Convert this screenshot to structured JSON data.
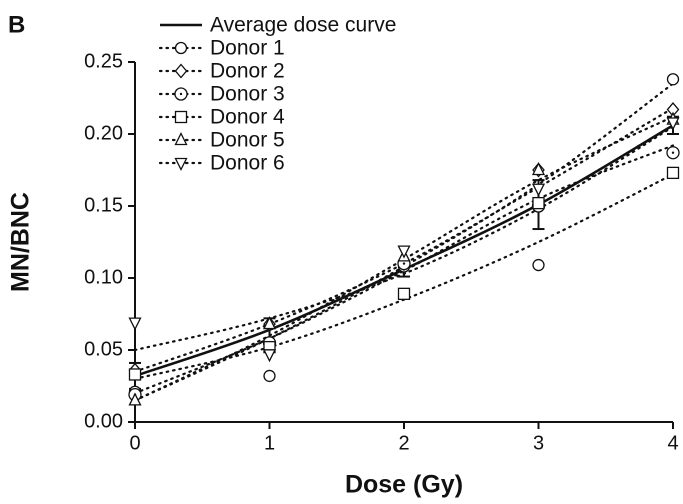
{
  "chart_data": {
    "type": "scatter",
    "panel_label": "B",
    "x_label": "Dose (Gy)",
    "y_label": "MN/BNC",
    "x": [
      0,
      1,
      2,
      3,
      4
    ],
    "xlim": [
      0,
      4
    ],
    "xticks": [
      0,
      1,
      2,
      3,
      4
    ],
    "ylim": [
      0,
      0.25
    ],
    "yticks": [
      {
        "value": 0,
        "label": "0.00"
      },
      0.05,
      {
        "value": 0.1,
        "label": "0.10"
      },
      0.15,
      {
        "value": 0.2,
        "label": "0.20"
      },
      0.25
    ],
    "average": {
      "name": "Average dose curve",
      "color": "#111111",
      "values": [
        0.032,
        0.064,
        0.106,
        0.151,
        0.206
      ],
      "errors": [
        0.009,
        0.008,
        0.005,
        0.017,
        0.006
      ]
    },
    "series": [
      {
        "name": "Donor 1",
        "marker": "circle",
        "color": "#111111",
        "values": [
          0.021,
          0.032,
          0.108,
          0.109,
          0.238
        ],
        "fit": [
          0.015,
          0.058,
          0.108,
          0.165,
          0.235
        ]
      },
      {
        "name": "Donor 2",
        "marker": "diamond",
        "color": "#111111",
        "values": [
          0.036,
          0.068,
          0.11,
          0.175,
          0.217
        ],
        "fit": [
          0.035,
          0.068,
          0.11,
          0.163,
          0.218
        ]
      },
      {
        "name": "Donor 3",
        "marker": "circle-dot",
        "color": "#111111",
        "values": [
          0.019,
          0.055,
          0.11,
          0.15,
          0.187
        ],
        "fit": [
          0.02,
          0.058,
          0.105,
          0.155,
          0.192
        ]
      },
      {
        "name": "Donor 4",
        "marker": "square",
        "color": "#111111",
        "values": [
          0.033,
          0.052,
          0.089,
          0.152,
          0.173
        ],
        "fit": [
          0.03,
          0.052,
          0.085,
          0.125,
          0.172
        ]
      },
      {
        "name": "Donor 5",
        "marker": "triangle-up",
        "color": "#111111",
        "values": [
          0.015,
          0.068,
          0.115,
          0.175,
          0.21
        ],
        "fit": [
          0.015,
          0.06,
          0.113,
          0.168,
          0.212
        ]
      },
      {
        "name": "Donor 6",
        "marker": "triangle-down",
        "color": "#111111",
        "values": [
          0.069,
          0.047,
          0.119,
          0.162,
          0.208
        ],
        "fit": [
          0.05,
          0.072,
          0.103,
          0.148,
          0.205
        ]
      }
    ]
  }
}
